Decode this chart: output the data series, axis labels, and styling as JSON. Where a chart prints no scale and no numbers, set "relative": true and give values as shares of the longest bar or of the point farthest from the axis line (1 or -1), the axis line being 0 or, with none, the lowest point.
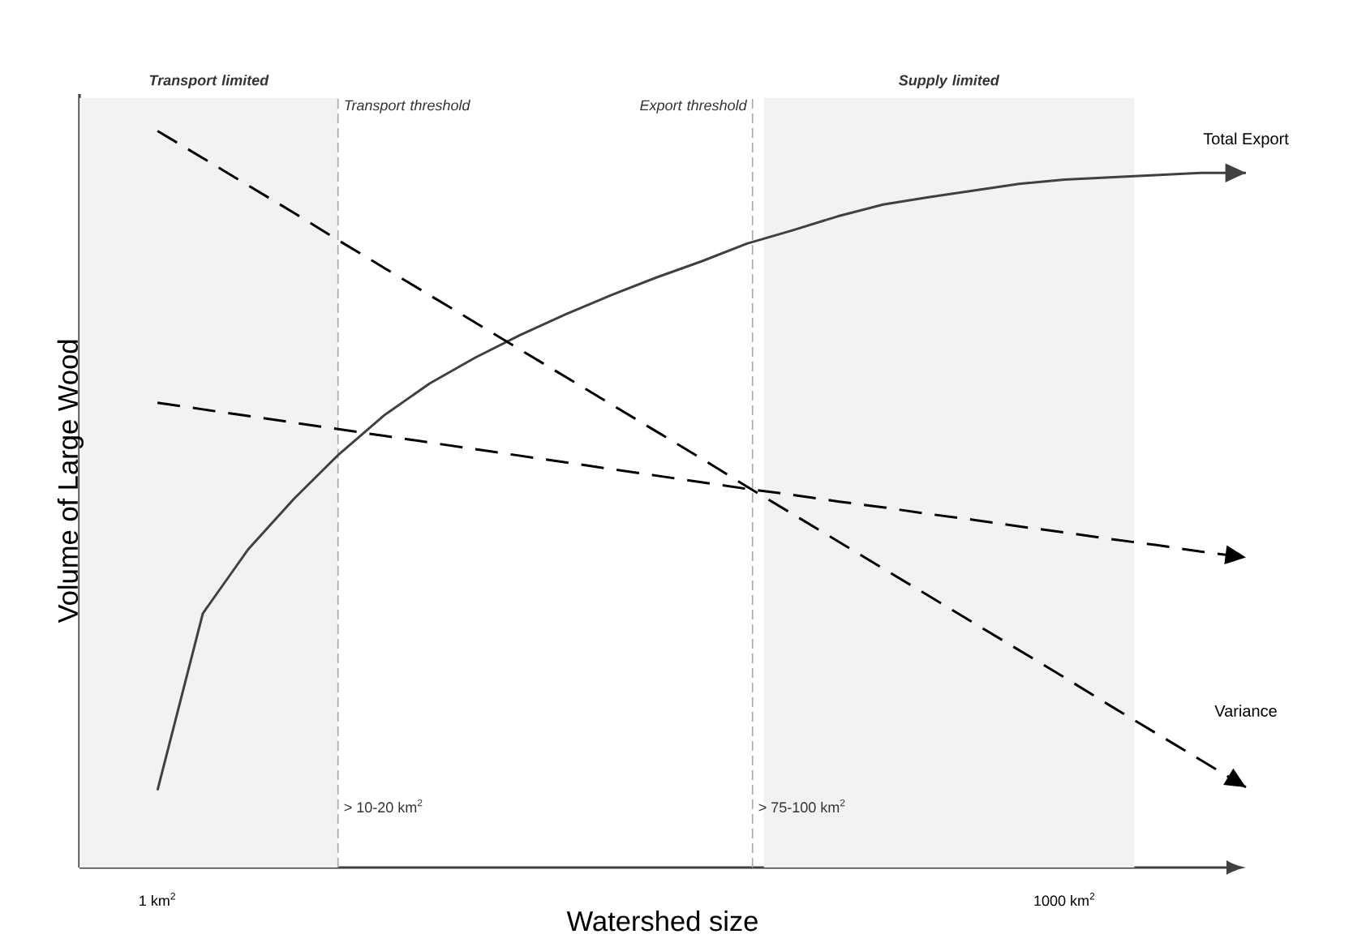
{
  "chart_data": {
    "type": "line",
    "relative": true,
    "legend": false,
    "xlabel": "Watershed size",
    "ylabel": "Volume of Large Wood",
    "categories": [
      "1 km$^{2}$",
      null,
      null,
      null,
      null,
      null,
      null,
      null,
      null,
      null,
      null,
      null,
      null,
      null,
      null,
      null,
      null,
      null,
      null,
      null,
      "1000 km$^{2}$",
      null,
      null,
      null,
      null
    ],
    "series": [
      {
        "name": "Total Export",
        "color": "#404040",
        "line_style": "solid",
        "values": [
          0.105,
          0.345,
          0.432,
          0.5,
          0.561,
          0.614,
          0.657,
          0.692,
          0.723,
          0.751,
          0.777,
          0.801,
          0.823,
          0.847,
          0.865,
          0.884,
          0.9,
          0.91,
          0.919,
          0.928,
          0.934,
          0.937,
          0.94,
          0.943,
          0.943
        ]
      },
      {
        "name": "Variance",
        "color": "#000000",
        "line_style": "dashed",
        "values": [
          1.0,
          0.963,
          0.926,
          0.889,
          0.851,
          0.814,
          0.777,
          0.74,
          0.703,
          0.666,
          0.629,
          0.592,
          0.555,
          0.517,
          0.48,
          0.443,
          0.406,
          0.369,
          0.332,
          0.295,
          0.258,
          0.22,
          0.183,
          0.146,
          0.109
        ]
      },
      {
        "color": "#000000",
        "line_style": "dashed",
        "values": [
          0.631,
          0.622,
          0.613,
          0.604,
          0.595,
          0.586,
          0.577,
          0.568,
          0.559,
          0.55,
          0.541,
          0.532,
          0.523,
          0.514,
          0.506,
          0.497,
          0.489,
          0.48,
          0.472,
          0.463,
          0.455,
          0.446,
          0.438,
          0.429,
          0.421
        ]
      }
    ],
    "annotations": [
      "**Transport limited**",
      "**Supply limited**",
      "Transport threshold",
      "Export threshold",
      "> 10-20 km$^{2}$",
      "> 75-100 km$^{2}$"
    ]
  }
}
